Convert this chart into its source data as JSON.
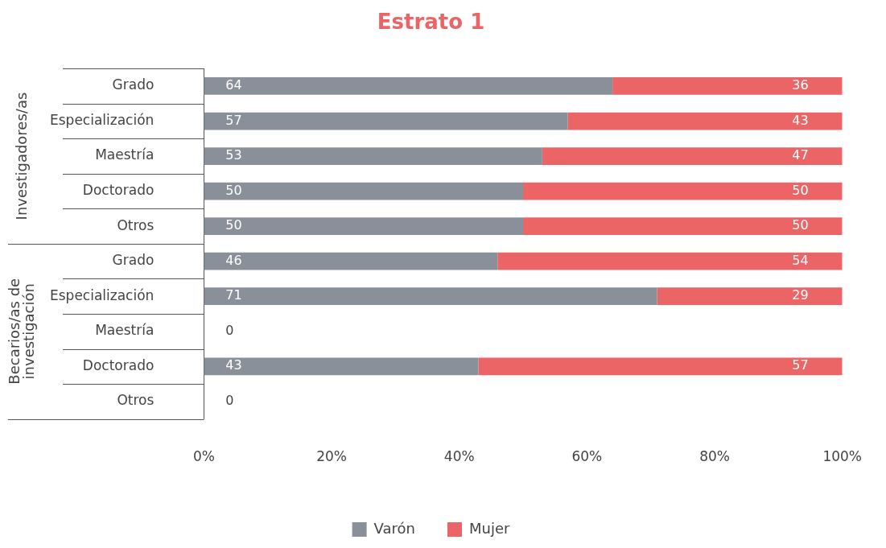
{
  "chart_data": {
    "type": "bar",
    "orientation": "horizontal",
    "stacked": true,
    "title": "Estrato 1",
    "categories": [
      "Grado",
      "Especialización",
      "Maestría",
      "Doctorado",
      "Otros",
      "Grado",
      "Especialización",
      "Maestría",
      "Doctorado",
      "Otros"
    ],
    "series": [
      {
        "name": "Varón",
        "color": "#8a9099",
        "values": [
          64,
          57,
          53,
          50,
          50,
          46,
          71,
          0,
          43,
          0
        ],
        "value_labels": [
          "64",
          "57",
          "53",
          "50",
          "50",
          "46",
          "71",
          "0",
          "43",
          "0"
        ]
      },
      {
        "name": "Mujer",
        "color": "#eb6566",
        "values": [
          36,
          43,
          47,
          50,
          50,
          54,
          29,
          null,
          57,
          null
        ],
        "value_labels": [
          "36",
          "43",
          "47",
          "50",
          "50",
          "54",
          "29",
          null,
          "57",
          null
        ]
      }
    ],
    "xlim": [
      0,
      100
    ],
    "xticks": [
      {
        "value": 0,
        "label": "0%"
      },
      {
        "value": 20,
        "label": "20%"
      },
      {
        "value": 40,
        "label": "40%"
      },
      {
        "value": 60,
        "label": "60%"
      },
      {
        "value": 80,
        "label": "80%"
      },
      {
        "value": 100,
        "label": "100%"
      }
    ],
    "annotations": [
      "Investigadores/as",
      "Becarios/as de investigación"
    ],
    "grid": false,
    "legend": "bottom"
  }
}
